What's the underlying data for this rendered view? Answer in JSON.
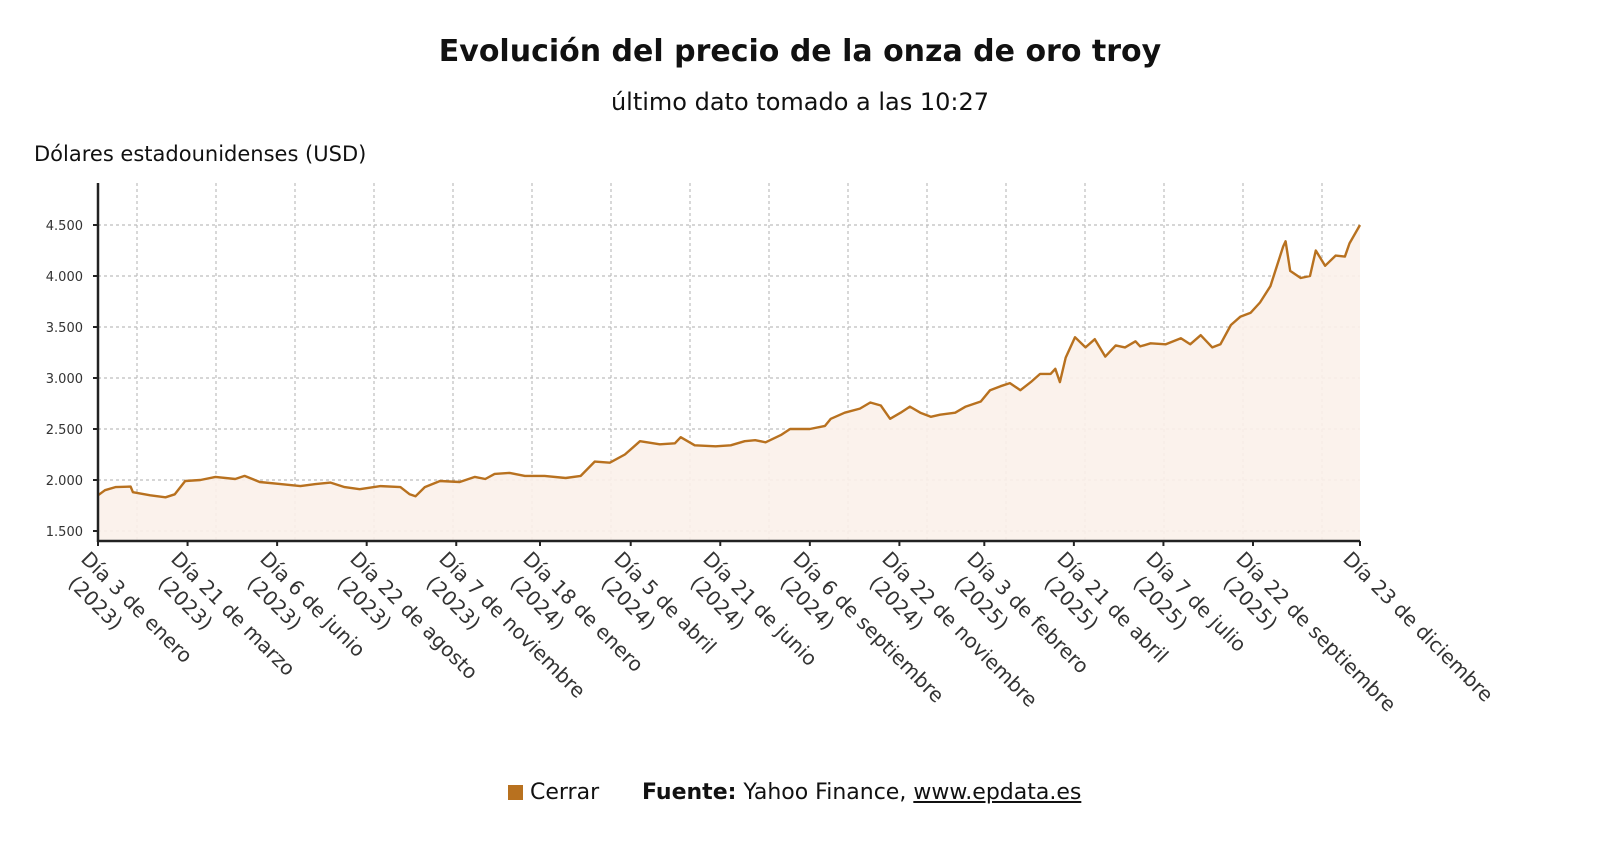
{
  "title": "Evolución del precio de la onza de oro troy",
  "subtitle": "último dato tomado a las 10:27",
  "legend": {
    "label": "Cerrar"
  },
  "source": {
    "label": "Fuente:",
    "text": "Yahoo Finance,",
    "link": "www.epdata.es"
  },
  "colors": {
    "line": "#b8711f",
    "fill": "#fbf1ea",
    "grid": "#bdbdbd",
    "axis": "#222222"
  },
  "chart_data": {
    "type": "area",
    "title": "Evolución del precio de la onza de oro troy",
    "subtitle": "último dato tomado a las 10:27",
    "ylabel": "Dólares estadounidenses (USD)",
    "xlabel": "",
    "ylim": [
      1500,
      4500
    ],
    "yticks": [
      "1.500",
      "2.000",
      "2.500",
      "3.000",
      "3.500",
      "4.000",
      "4.500"
    ],
    "ytick_values": [
      1500,
      2000,
      2500,
      3000,
      3500,
      4000,
      4500
    ],
    "grid": true,
    "legend_position": "bottom",
    "xticks": [
      {
        "date": "2023-01-03",
        "line1": "Día 3 de enero",
        "line2": "(2023)"
      },
      {
        "date": "2023-03-21",
        "line1": "Día 21 de marzo",
        "line2": "(2023)"
      },
      {
        "date": "2023-06-06",
        "line1": "Día 6 de junio",
        "line2": "(2023)"
      },
      {
        "date": "2023-08-22",
        "line1": "Día 22 de agosto",
        "line2": "(2023)"
      },
      {
        "date": "2023-11-07",
        "line1": "Día 7 de noviembre",
        "line2": "(2023)"
      },
      {
        "date": "2024-01-18",
        "line1": "Día 18 de enero",
        "line2": "(2024)"
      },
      {
        "date": "2024-04-05",
        "line1": "Día 5 de abril",
        "line2": "(2024)"
      },
      {
        "date": "2024-06-21",
        "line1": "Día 21 de junio",
        "line2": "(2024)"
      },
      {
        "date": "2024-09-06",
        "line1": "Día 6 de septiembre",
        "line2": "(2024)"
      },
      {
        "date": "2024-11-22",
        "line1": "Día 22 de noviembre",
        "line2": "(2024)"
      },
      {
        "date": "2025-02-03",
        "line1": "Día 3 de febrero",
        "line2": "(2025)"
      },
      {
        "date": "2025-04-21",
        "line1": "Día 21 de abril",
        "line2": "(2025)"
      },
      {
        "date": "2025-07-07",
        "line1": "Día 7 de julio",
        "line2": "(2025)"
      },
      {
        "date": "2025-09-22",
        "line1": "Día 22 de septiembre",
        "line2": "(2025)"
      },
      {
        "date": "2025-12-23",
        "line1": "Día 23 de diciembre",
        "line2": ""
      }
    ],
    "series": [
      {
        "name": "Cerrar",
        "points": [
          [
            "2023-01-03",
            1850
          ],
          [
            "2023-01-09",
            1900
          ],
          [
            "2023-01-18",
            1930
          ],
          [
            "2023-01-31",
            1935
          ],
          [
            "2023-02-02",
            1880
          ],
          [
            "2023-02-17",
            1850
          ],
          [
            "2023-03-02",
            1830
          ],
          [
            "2023-03-10",
            1860
          ],
          [
            "2023-03-19",
            1990
          ],
          [
            "2023-04-01",
            2000
          ],
          [
            "2023-04-14",
            2030
          ],
          [
            "2023-05-01",
            2010
          ],
          [
            "2023-05-09",
            2040
          ],
          [
            "2023-05-22",
            1980
          ],
          [
            "2023-06-09",
            1960
          ],
          [
            "2023-06-26",
            1940
          ],
          [
            "2023-07-09",
            1960
          ],
          [
            "2023-07-22",
            1975
          ],
          [
            "2023-08-03",
            1930
          ],
          [
            "2023-08-16",
            1910
          ],
          [
            "2023-09-03",
            1940
          ],
          [
            "2023-09-20",
            1930
          ],
          [
            "2023-09-28",
            1860
          ],
          [
            "2023-10-03",
            1840
          ],
          [
            "2023-10-11",
            1930
          ],
          [
            "2023-10-24",
            1990
          ],
          [
            "2023-11-10",
            1980
          ],
          [
            "2023-11-23",
            2030
          ],
          [
            "2023-12-02",
            2010
          ],
          [
            "2023-12-10",
            2060
          ],
          [
            "2023-12-23",
            2070
          ],
          [
            "2024-01-05",
            2040
          ],
          [
            "2024-01-22",
            2040
          ],
          [
            "2024-02-09",
            2020
          ],
          [
            "2024-02-22",
            2040
          ],
          [
            "2024-03-05",
            2180
          ],
          [
            "2024-03-18",
            2170
          ],
          [
            "2024-03-31",
            2250
          ],
          [
            "2024-04-13",
            2380
          ],
          [
            "2024-04-30",
            2350
          ],
          [
            "2024-05-13",
            2360
          ],
          [
            "2024-05-18",
            2420
          ],
          [
            "2024-05-30",
            2340
          ],
          [
            "2024-06-17",
            2330
          ],
          [
            "2024-06-30",
            2340
          ],
          [
            "2024-07-12",
            2380
          ],
          [
            "2024-07-21",
            2390
          ],
          [
            "2024-07-30",
            2370
          ],
          [
            "2024-08-12",
            2440
          ],
          [
            "2024-08-20",
            2500
          ],
          [
            "2024-09-06",
            2500
          ],
          [
            "2024-09-19",
            2530
          ],
          [
            "2024-09-24",
            2600
          ],
          [
            "2024-10-06",
            2660
          ],
          [
            "2024-10-19",
            2700
          ],
          [
            "2024-10-28",
            2760
          ],
          [
            "2024-11-06",
            2730
          ],
          [
            "2024-11-14",
            2600
          ],
          [
            "2024-11-23",
            2660
          ],
          [
            "2024-12-01",
            2720
          ],
          [
            "2024-12-10",
            2660
          ],
          [
            "2024-12-19",
            2620
          ],
          [
            "2024-12-27",
            2640
          ],
          [
            "2025-01-09",
            2660
          ],
          [
            "2025-01-18",
            2720
          ],
          [
            "2025-01-31",
            2770
          ],
          [
            "2025-02-08",
            2880
          ],
          [
            "2025-02-17",
            2920
          ],
          [
            "2025-02-25",
            2950
          ],
          [
            "2025-03-06",
            2880
          ],
          [
            "2025-03-15",
            2960
          ],
          [
            "2025-03-23",
            3040
          ],
          [
            "2025-04-01",
            3040
          ],
          [
            "2025-04-05",
            3090
          ],
          [
            "2025-04-09",
            2960
          ],
          [
            "2025-04-14",
            3200
          ],
          [
            "2025-04-22",
            3400
          ],
          [
            "2025-05-01",
            3300
          ],
          [
            "2025-05-09",
            3380
          ],
          [
            "2025-05-18",
            3210
          ],
          [
            "2025-05-27",
            3320
          ],
          [
            "2025-06-04",
            3300
          ],
          [
            "2025-06-13",
            3360
          ],
          [
            "2025-06-17",
            3310
          ],
          [
            "2025-06-26",
            3340
          ],
          [
            "2025-07-09",
            3330
          ],
          [
            "2025-07-22",
            3390
          ],
          [
            "2025-07-30",
            3330
          ],
          [
            "2025-08-08",
            3420
          ],
          [
            "2025-08-18",
            3300
          ],
          [
            "2025-08-25",
            3330
          ],
          [
            "2025-09-03",
            3520
          ],
          [
            "2025-09-11",
            3600
          ],
          [
            "2025-09-20",
            3640
          ],
          [
            "2025-09-28",
            3740
          ],
          [
            "2025-10-07",
            3900
          ],
          [
            "2025-10-18",
            4290
          ],
          [
            "2025-10-20",
            4340
          ],
          [
            "2025-10-24",
            4050
          ],
          [
            "2025-11-02",
            3980
          ],
          [
            "2025-11-10",
            4000
          ],
          [
            "2025-11-15",
            4250
          ],
          [
            "2025-11-23",
            4100
          ],
          [
            "2025-12-02",
            4200
          ],
          [
            "2025-12-10",
            4190
          ],
          [
            "2025-12-14",
            4320
          ],
          [
            "2025-12-23",
            4500
          ]
        ]
      }
    ]
  }
}
